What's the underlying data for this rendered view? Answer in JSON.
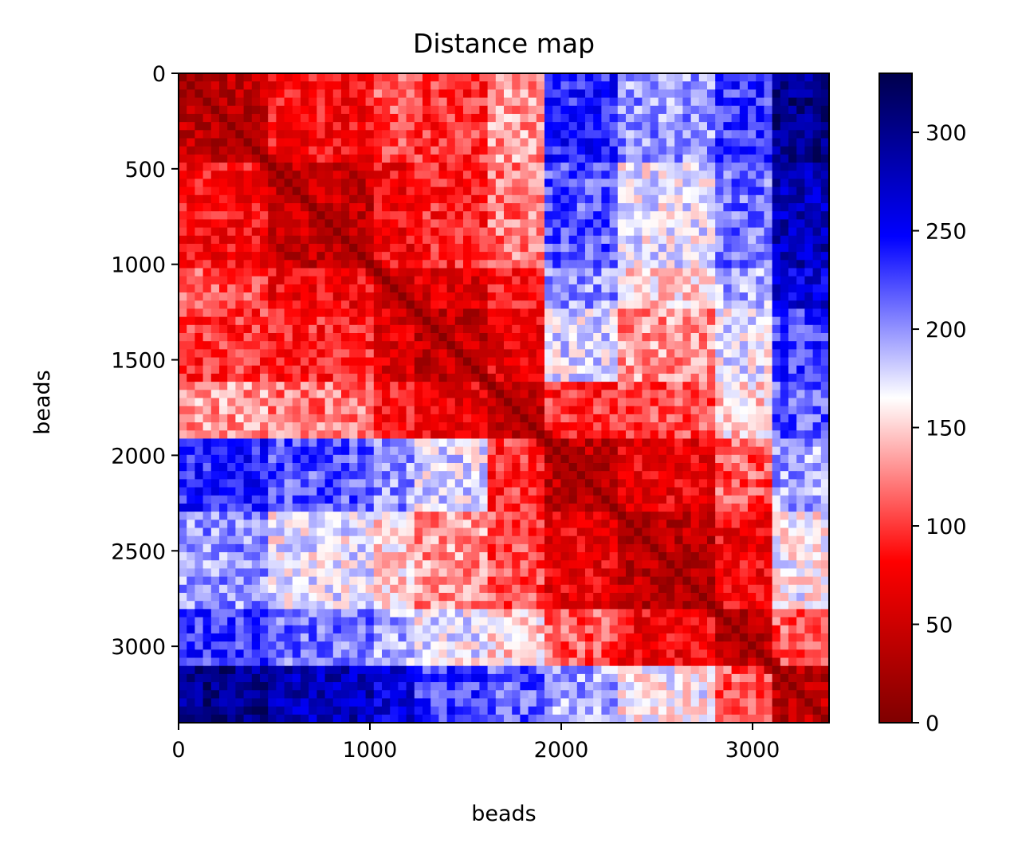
{
  "chart_data": {
    "type": "heatmap",
    "title": "Distance map",
    "xlabel": "beads",
    "ylabel": "beads",
    "n_beads": 3400,
    "xlim": [
      0,
      3400
    ],
    "ylim": [
      3400,
      0
    ],
    "xticks": [
      0,
      1000,
      2000,
      3000
    ],
    "yticks": [
      0,
      500,
      1000,
      1500,
      2000,
      2500,
      3000
    ],
    "colormap": "seismic_r",
    "colorbar": {
      "min": 0,
      "max": 330,
      "ticks": [
        0,
        50,
        100,
        150,
        200,
        250,
        300
      ],
      "stops": [
        {
          "value": 0,
          "color": "#7f0000"
        },
        {
          "value": 82,
          "color": "#ff0000"
        },
        {
          "value": 165,
          "color": "#ffffff"
        },
        {
          "value": 247,
          "color": "#0000ff"
        },
        {
          "value": 330,
          "color": "#00004c"
        }
      ]
    },
    "blocks_boundaries": [
      0,
      450,
      1000,
      1250,
      1600,
      1900,
      2300,
      2800,
      3100,
      3400
    ],
    "block_mean_distance": [
      [
        40,
        80,
        110,
        95,
        130,
        240,
        200,
        230,
        300
      ],
      [
        80,
        45,
        75,
        90,
        120,
        220,
        170,
        210,
        280
      ],
      [
        110,
        75,
        45,
        60,
        85,
        200,
        150,
        190,
        260
      ],
      [
        95,
        90,
        60,
        45,
        70,
        175,
        130,
        170,
        230
      ],
      [
        130,
        120,
        85,
        70,
        40,
        95,
        105,
        150,
        215
      ],
      [
        240,
        220,
        200,
        175,
        95,
        40,
        70,
        110,
        195
      ],
      [
        200,
        170,
        150,
        130,
        105,
        70,
        40,
        75,
        165
      ],
      [
        230,
        210,
        190,
        170,
        150,
        110,
        75,
        40,
        110
      ],
      [
        300,
        280,
        260,
        230,
        215,
        195,
        165,
        110,
        40
      ]
    ]
  }
}
